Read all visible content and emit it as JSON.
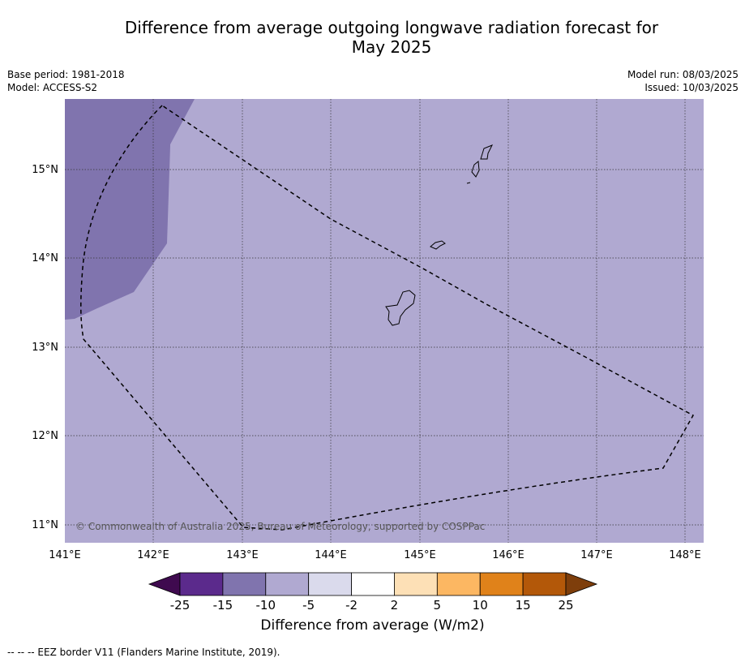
{
  "title_line1": "Difference from average outgoing longwave radiation forecast for",
  "title_line2": "May 2025",
  "meta_left": {
    "base_period": "Base period: 1981-2018",
    "model": "Model: ACCESS-S2"
  },
  "meta_right": {
    "model_run": "Model run: 08/03/2025",
    "issued": "Issued: 10/03/2025"
  },
  "map": {
    "lat_labels": [
      "15°N",
      "14°N",
      "13°N",
      "12°N",
      "11°N"
    ],
    "lon_labels": [
      "141°E",
      "142°E",
      "143°E",
      "144°E",
      "145°E",
      "146°E",
      "147°E",
      "148°E"
    ],
    "copyright": "© Commonwealth of Australia 2025, Bureau of Meteorology, supported by COSPPac",
    "background_category": "-5 to -10",
    "dark_region_category": "-10 to -15"
  },
  "colorbar": {
    "ticks": [
      "-25",
      "-15",
      "-10",
      "-5",
      "-2",
      "2",
      "5",
      "10",
      "15",
      "25"
    ],
    "colors": [
      "#3f0a4f",
      "#5b2a8c",
      "#8074ae",
      "#b0a9d1",
      "#dadaec",
      "#ffffff",
      "#fde0b6",
      "#fcb762",
      "#e0821a",
      "#b35809",
      "#7e3e0b"
    ],
    "title": "Difference from average (W/m2)"
  },
  "footer": "--  --  -- EEZ border V11 (Flanders Marine Institute, 2019)."
}
